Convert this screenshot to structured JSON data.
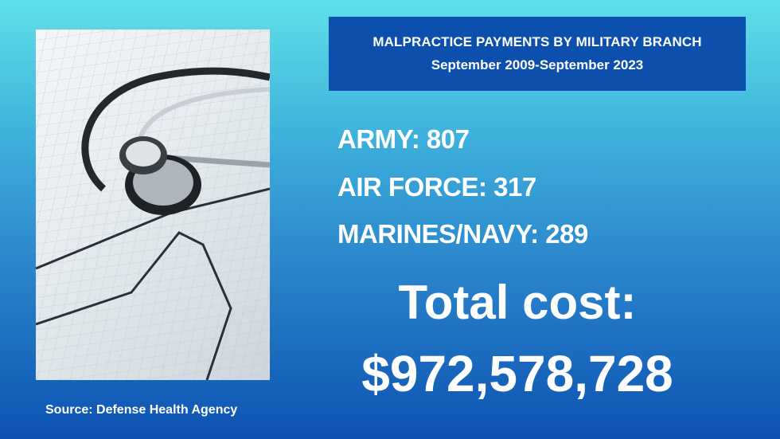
{
  "header": {
    "title": "MALPRACTICE PAYMENTS BY MILITARY BRANCH",
    "subtitle": "September 2009-September 2023"
  },
  "stats": [
    {
      "label": "ARMY: 807"
    },
    {
      "label": "AIR FORCE: 317"
    },
    {
      "label": "MARINES/NAVY: 289"
    }
  ],
  "total": {
    "label": "Total cost:",
    "value": "$972,578,728"
  },
  "source": "Source: Defense Health Agency",
  "colors": {
    "header_bg": "#0c4fad",
    "bg_top": "#5fe0e9",
    "bg_bottom": "#0d52b2",
    "text": "#ffffff"
  }
}
